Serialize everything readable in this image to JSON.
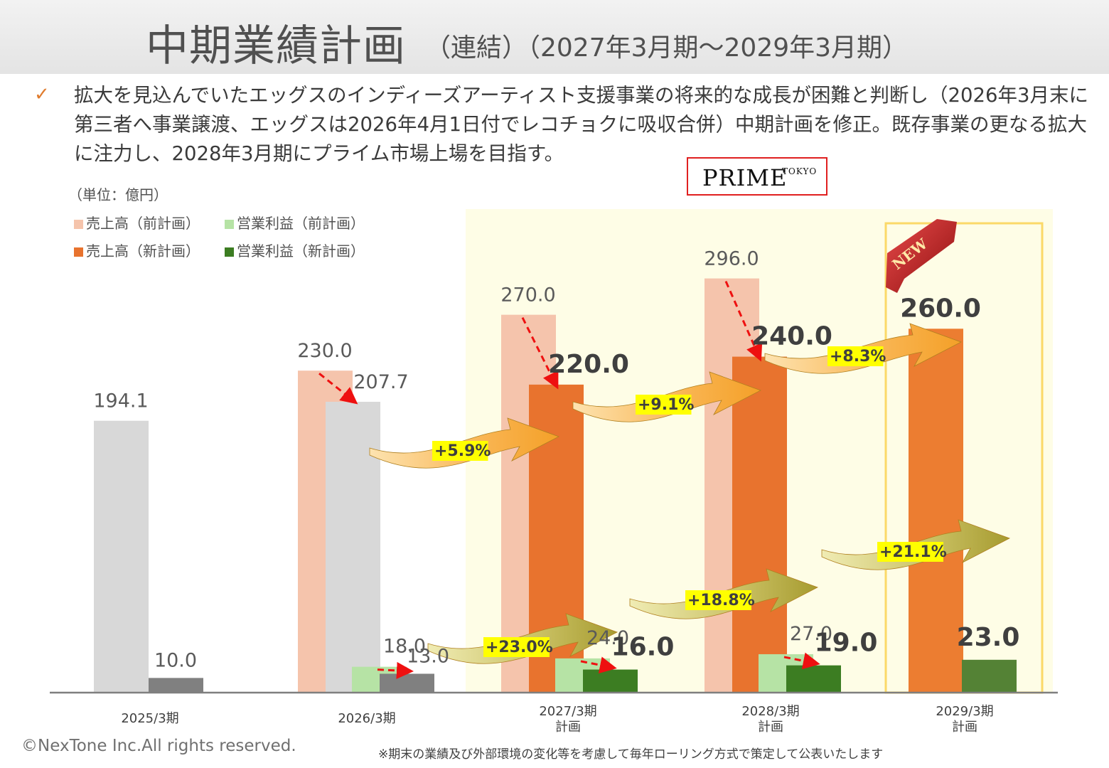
{
  "title": "中期業績計画",
  "subtitle": "（連結）（2027年3月期～2029年3月期）",
  "summary_text": "拡大を見込んでいたエッグスのインディーズアーティスト支援事業の将来的な成長が困難と判断し（2026年3月末に第三者へ事業譲渡、エッグスは2026年4月1日付でレコチョクに吸収合併）中期計画を修正。既存事業の更なる拡大に注力し、2028年3月期にプライム市場上場を目指す。",
  "prime_logo": {
    "word": "PRIME",
    "tokyo": "TOKYO"
  },
  "new_badge": "NEW",
  "copyright": "©NexTone Inc.All rights reserved.",
  "footnote": "※期末の業績及び外部環境の変化等を考慮して毎年ローリング方式で策定して公表いたします",
  "colors": {
    "sales_prev": "#f5c4ac",
    "sales_new": "#e8732e",
    "op_prev": "#b6e3a5",
    "op_new": "#3c7d22",
    "actual_sales": "#d8d8d8",
    "actual_op": "#808080",
    "plan_bg": "#fefde6",
    "growth_label_bg": "#ffff00",
    "revision_arrow": "#ee1010"
  },
  "chart_data": {
    "type": "bar",
    "unit_label": "（単位：億円）",
    "categories": [
      "2025/3期",
      "2026/3期",
      "2027/3期\n計画",
      "2028/3期\n計画",
      "2029/3期\n計画"
    ],
    "series": [
      {
        "name": "売上高（前計画）",
        "values": [
          null,
          230.0,
          270.0,
          296.0,
          null
        ]
      },
      {
        "name": "売上高（新計画）",
        "values": [
          194.1,
          207.7,
          220.0,
          240.0,
          260.0
        ]
      },
      {
        "name": "営業利益（前計画）",
        "values": [
          null,
          18.0,
          24.0,
          27.0,
          null
        ]
      },
      {
        "name": "営業利益（新計画）",
        "values": [
          10.0,
          13.0,
          16.0,
          19.0,
          23.0
        ]
      }
    ],
    "value_labels": {
      "sales_prev": [
        "",
        "230.0",
        "270.0",
        "296.0",
        ""
      ],
      "sales_new": [
        "194.1",
        "207.7",
        "220.0",
        "240.0",
        "260.0"
      ],
      "op_prev": [
        "",
        "18.0",
        "24.0",
        "27.0",
        ""
      ],
      "op_new": [
        "10.0",
        "13.0",
        "16.0",
        "19.0",
        "23.0"
      ]
    },
    "sales_growth": [
      "+5.9%",
      "+9.1%",
      "+8.3%"
    ],
    "op_growth": [
      "+23.0%",
      "+18.8%",
      "+21.1%"
    ],
    "legend": [
      "売上高（前計画）",
      "営業利益（前計画）",
      "売上高（新計画）",
      "営業利益（新計画）"
    ],
    "legend_position": "top-left",
    "grid": false
  }
}
